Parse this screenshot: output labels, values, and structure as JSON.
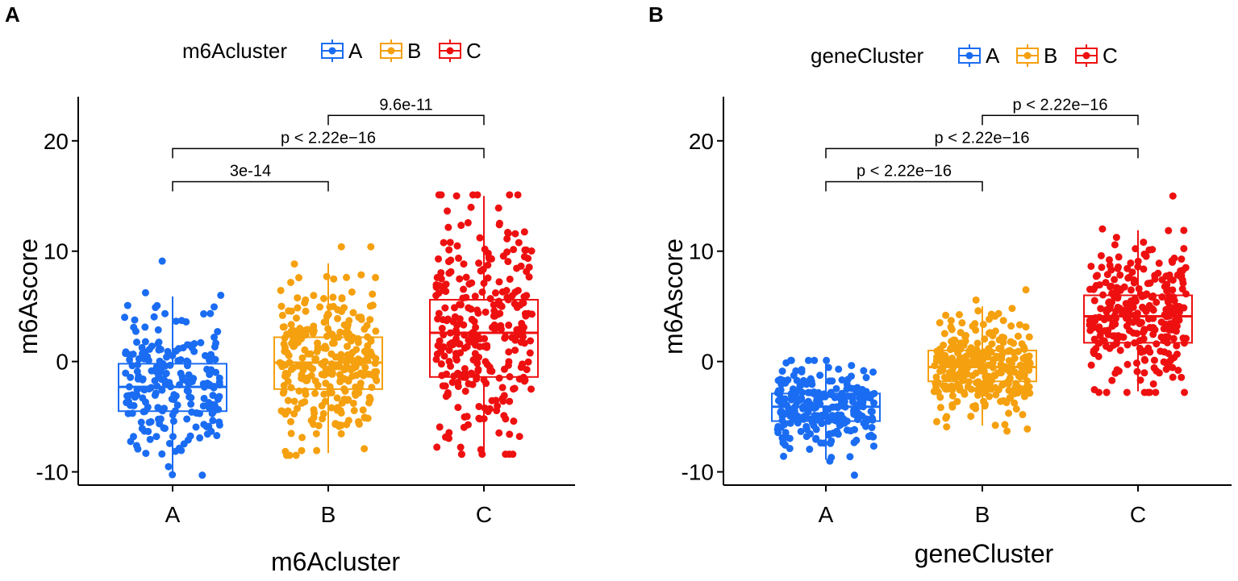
{
  "colors": {
    "A": "#1a6cf2",
    "B": "#f5a00e",
    "C": "#ee1010",
    "axis": "#000000"
  },
  "chart_data": [
    {
      "type": "boxplot",
      "panel_label": "A",
      "legend": {
        "title": "m6Acluster",
        "position": "top",
        "entries": [
          "A",
          "B",
          "C"
        ]
      },
      "xlabel": "m6Acluster",
      "ylabel": "m6Ascore",
      "categories": [
        "A",
        "B",
        "C"
      ],
      "ylim": [
        -11.2,
        24
      ],
      "yticks": [
        -10,
        0,
        10,
        20
      ],
      "ytick_labels": [
        "-10",
        "0",
        "10",
        "20"
      ],
      "boxes": [
        {
          "name": "A",
          "q1": -4.5,
          "median": -2.3,
          "q3": -0.2,
          "whisker_low": -10.2,
          "whisker_high": 5.9,
          "n_points": 230,
          "point_min": -10.3,
          "point_max": 9.1
        },
        {
          "name": "B",
          "q1": -2.5,
          "median": -0.1,
          "q3": 2.2,
          "whisker_low": -8.3,
          "whisker_high": 8.9,
          "n_points": 300,
          "point_min": -8.5,
          "point_max": 10.4
        },
        {
          "name": "C",
          "q1": -1.4,
          "median": 2.6,
          "q3": 5.6,
          "whisker_low": -8.4,
          "whisker_high": 15.0,
          "n_points": 300,
          "point_min": -8.4,
          "point_max": 15.1
        }
      ],
      "comparisons": [
        {
          "from": "A",
          "to": "B",
          "y": 16.3,
          "label": "3e-14"
        },
        {
          "from": "A",
          "to": "C",
          "y": 19.3,
          "label": "p < 2.22e−16"
        },
        {
          "from": "B",
          "to": "C",
          "y": 22.3,
          "label": "9.6e-11"
        }
      ]
    },
    {
      "type": "boxplot",
      "panel_label": "B",
      "legend": {
        "title": "geneCluster",
        "position": "top",
        "entries": [
          "A",
          "B",
          "C"
        ]
      },
      "xlabel": "geneCluster",
      "ylabel": "m6Ascore",
      "categories": [
        "A",
        "B",
        "C"
      ],
      "ylim": [
        -11.2,
        24
      ],
      "yticks": [
        -10,
        0,
        10,
        20
      ],
      "ytick_labels": [
        "-10",
        "0",
        "10",
        "20"
      ],
      "boxes": [
        {
          "name": "A",
          "q1": -5.4,
          "median": -4.1,
          "q3": -2.9,
          "whisker_low": -8.9,
          "whisker_high": 0.1,
          "n_points": 260,
          "point_min": -10.3,
          "point_max": 0.1
        },
        {
          "name": "B",
          "q1": -1.8,
          "median": -0.5,
          "q3": 1.0,
          "whisker_low": -5.8,
          "whisker_high": 5.0,
          "n_points": 300,
          "point_min": -6.3,
          "point_max": 6.5
        },
        {
          "name": "C",
          "q1": 1.7,
          "median": 4.1,
          "q3": 6.0,
          "whisker_low": -2.7,
          "whisker_high": 11.9,
          "n_points": 300,
          "point_min": -2.8,
          "point_max": 15.0
        }
      ],
      "comparisons": [
        {
          "from": "A",
          "to": "B",
          "y": 16.3,
          "label": "p < 2.22e−16"
        },
        {
          "from": "A",
          "to": "C",
          "y": 19.3,
          "label": "p < 2.22e−16"
        },
        {
          "from": "B",
          "to": "C",
          "y": 22.3,
          "label": "p < 2.22e−16"
        }
      ]
    }
  ]
}
